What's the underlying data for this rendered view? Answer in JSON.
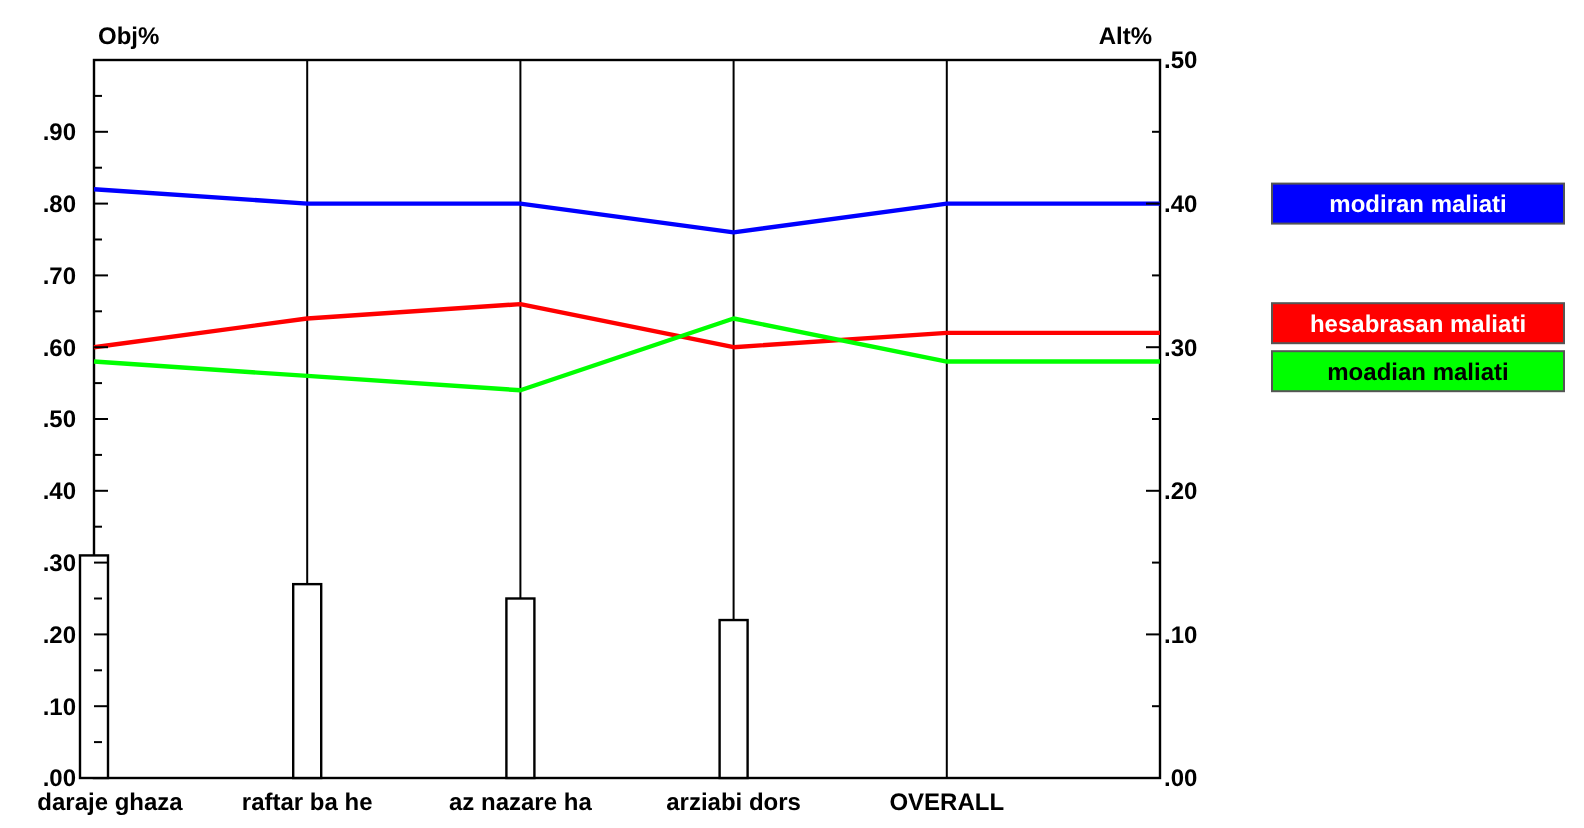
{
  "chart_data": {
    "type": "line",
    "ylabel": "Obj%",
    "y2label": "Alt%",
    "categories": [
      "daraje ghaza",
      "raftar ba he",
      "az nazare ha",
      "arziabi dors",
      "OVERALL",
      null
    ],
    "series": [
      {
        "type": "bar",
        "axis": "y",
        "color": "#ffffff",
        "values": [
          0.31,
          0.27,
          0.25,
          0.22,
          null,
          null
        ]
      },
      {
        "name": "modiran maliati",
        "axis": "y2",
        "color": "#0000ff",
        "values": [
          0.41,
          0.4,
          0.4,
          0.38,
          0.4,
          0.4
        ]
      },
      {
        "name": "hesabrasan maliati",
        "axis": "y2",
        "color": "#ff0000",
        "values": [
          0.3,
          0.32,
          0.33,
          0.3,
          0.31,
          0.31
        ]
      },
      {
        "name": "moadian maliati",
        "axis": "y2",
        "color": "#00ff00",
        "values": [
          0.29,
          0.28,
          0.27,
          0.32,
          0.29,
          0.29
        ]
      }
    ],
    "ylim": [
      0,
      1
    ],
    "yticks": [
      {
        "value": 0,
        "label": ".00"
      },
      {
        "value": 0.05,
        "label": null
      },
      {
        "value": 0.1,
        "label": ".10"
      },
      {
        "value": 0.15,
        "label": null
      },
      {
        "value": 0.2,
        "label": ".20"
      },
      {
        "value": 0.25,
        "label": null
      },
      {
        "value": 0.3,
        "label": ".30"
      },
      {
        "value": 0.35,
        "label": null
      },
      {
        "value": 0.4,
        "label": ".40"
      },
      {
        "value": 0.45,
        "label": null
      },
      {
        "value": 0.5,
        "label": ".50"
      },
      {
        "value": 0.55,
        "label": null
      },
      {
        "value": 0.6,
        "label": ".60"
      },
      {
        "value": 0.65,
        "label": null
      },
      {
        "value": 0.7,
        "label": ".70"
      },
      {
        "value": 0.75,
        "label": null
      },
      {
        "value": 0.8,
        "label": ".80"
      },
      {
        "value": 0.85,
        "label": null
      },
      {
        "value": 0.9,
        "label": ".90"
      },
      {
        "value": 0.95,
        "label": null
      }
    ],
    "y2lim": [
      0,
      0.5
    ],
    "y2ticks": [
      {
        "value": 0,
        "label": ".00"
      },
      {
        "value": 0.05,
        "label": null
      },
      {
        "value": 0.1,
        "label": ".10"
      },
      {
        "value": 0.15,
        "label": null
      },
      {
        "value": 0.2,
        "label": ".20"
      },
      {
        "value": 0.25,
        "label": null
      },
      {
        "value": 0.3,
        "label": ".30"
      },
      {
        "value": 0.35,
        "label": null
      },
      {
        "value": 0.4,
        "label": ".40"
      },
      {
        "value": 0.45,
        "label": null
      },
      {
        "value": 0.5,
        "label": ".50"
      }
    ],
    "grid": "x",
    "legend": "right",
    "marker": "none",
    "line_style": "solid"
  }
}
